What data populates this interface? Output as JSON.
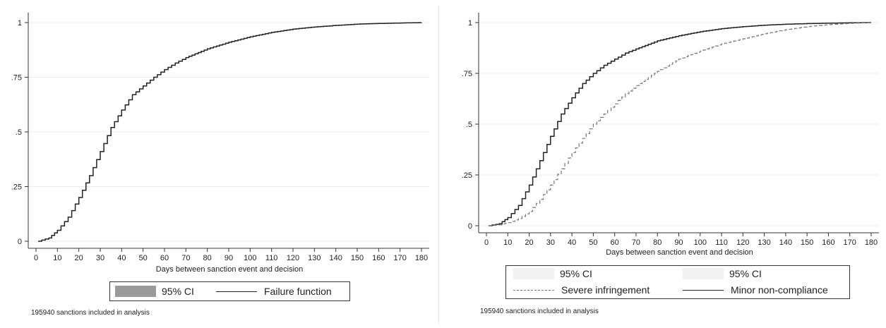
{
  "chart_data": [
    {
      "type": "line",
      "xlabel": "Days between sanction event and decision",
      "ylabel": "",
      "xlim": [
        0,
        180
      ],
      "ylim": [
        0,
        1
      ],
      "xticks": [
        0,
        10,
        20,
        30,
        40,
        50,
        60,
        70,
        80,
        90,
        100,
        110,
        120,
        130,
        140,
        150,
        160,
        170,
        180
      ],
      "yticks": [
        0,
        0.25,
        0.5,
        0.75,
        1
      ],
      "ytick_labels": [
        "0",
        ".25",
        ".5",
        ".75",
        "1"
      ],
      "grid": true,
      "legend_position": "bottom",
      "legend": [
        {
          "label": "95% CI",
          "kind": "area",
          "color": "#9a9a9a"
        },
        {
          "label": "Failure function",
          "kind": "solid",
          "color": "#222222"
        }
      ],
      "series": [
        {
          "name": "Failure function",
          "style": "solid",
          "x": [
            1,
            6,
            10,
            15,
            20,
            25,
            30,
            35,
            40,
            45,
            50,
            55,
            60,
            65,
            70,
            80,
            90,
            100,
            110,
            120,
            130,
            140,
            150,
            160,
            170,
            180
          ],
          "y": [
            0,
            0.015,
            0.05,
            0.11,
            0.2,
            0.3,
            0.41,
            0.52,
            0.6,
            0.67,
            0.71,
            0.75,
            0.785,
            0.815,
            0.84,
            0.88,
            0.91,
            0.935,
            0.955,
            0.97,
            0.98,
            0.987,
            0.993,
            0.996,
            0.998,
            1.0
          ]
        }
      ],
      "note": "195940 sanctions included in analysis"
    },
    {
      "type": "line",
      "xlabel": "Days between sanction event and decision",
      "ylabel": "",
      "xlim": [
        0,
        180
      ],
      "ylim": [
        0,
        1
      ],
      "xticks": [
        0,
        10,
        20,
        30,
        40,
        50,
        60,
        70,
        80,
        90,
        100,
        110,
        120,
        130,
        140,
        150,
        160,
        170,
        180
      ],
      "yticks": [
        0,
        0.25,
        0.5,
        0.75,
        1
      ],
      "ytick_labels": [
        "0",
        ".25",
        ".5",
        ".75",
        "1"
      ],
      "grid": true,
      "legend_position": "bottom",
      "legend": [
        {
          "label": "95% CI",
          "kind": "area",
          "color": "#f2f2f2"
        },
        {
          "label": "95% CI",
          "kind": "area",
          "color": "#f2f2f2"
        },
        {
          "label": "Severe infringement",
          "kind": "dashed",
          "color": "#777777"
        },
        {
          "label": "Minor non-compliance",
          "kind": "solid",
          "color": "#222222"
        }
      ],
      "series": [
        {
          "name": "Minor non-compliance",
          "style": "solid",
          "x": [
            1,
            6,
            10,
            15,
            20,
            25,
            30,
            35,
            40,
            45,
            50,
            55,
            60,
            65,
            70,
            80,
            90,
            100,
            110,
            120,
            130,
            140,
            150,
            160,
            170,
            180
          ],
          "y": [
            0,
            0.01,
            0.04,
            0.1,
            0.2,
            0.32,
            0.44,
            0.55,
            0.63,
            0.7,
            0.75,
            0.79,
            0.82,
            0.85,
            0.87,
            0.91,
            0.935,
            0.955,
            0.97,
            0.98,
            0.987,
            0.992,
            0.995,
            0.997,
            0.999,
            1.0
          ]
        },
        {
          "name": "Severe infringement",
          "style": "dashed",
          "x": [
            1,
            6,
            10,
            15,
            20,
            25,
            30,
            35,
            40,
            45,
            50,
            55,
            60,
            65,
            70,
            80,
            90,
            100,
            110,
            120,
            130,
            140,
            150,
            160,
            170,
            180
          ],
          "y": [
            0,
            0.005,
            0.015,
            0.035,
            0.07,
            0.13,
            0.2,
            0.28,
            0.36,
            0.43,
            0.5,
            0.55,
            0.6,
            0.65,
            0.69,
            0.76,
            0.82,
            0.86,
            0.895,
            0.92,
            0.945,
            0.965,
            0.98,
            0.99,
            0.996,
            1.0
          ]
        }
      ],
      "note": "195940 sanctions included in analysis"
    }
  ]
}
